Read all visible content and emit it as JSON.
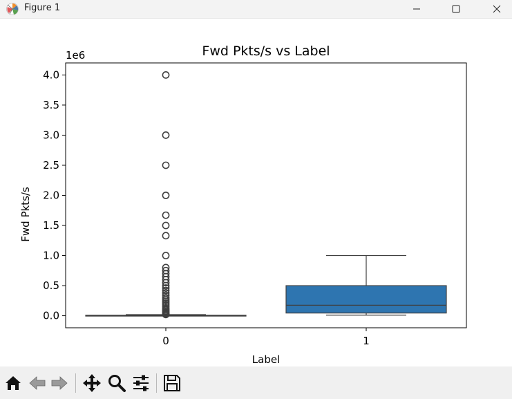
{
  "window": {
    "title": "Figure 1",
    "controls": [
      "minimize",
      "maximize",
      "close"
    ]
  },
  "toolbar": {
    "buttons": [
      {
        "name": "home",
        "icon": "home-icon"
      },
      {
        "name": "back",
        "icon": "arrow-left-icon"
      },
      {
        "name": "forward",
        "icon": "arrow-right-icon"
      },
      {
        "name": "pan",
        "icon": "move-icon"
      },
      {
        "name": "zoom",
        "icon": "magnifier-icon"
      },
      {
        "name": "configure",
        "icon": "sliders-icon"
      },
      {
        "name": "save",
        "icon": "floppy-icon"
      }
    ]
  },
  "chart_data": {
    "type": "boxplot",
    "title": "Fwd Pkts/s vs Label",
    "xlabel": "Label",
    "ylabel": "Fwd Pkts/s",
    "y_offset_text": "1e6",
    "ylim": [
      -0.2,
      4.2
    ],
    "yticks": [
      0.0,
      0.5,
      1.0,
      1.5,
      2.0,
      2.5,
      3.0,
      3.5,
      4.0
    ],
    "ytick_labels": [
      "0.0",
      "0.5",
      "1.0",
      "1.5",
      "2.0",
      "2.5",
      "3.0",
      "3.5",
      "4.0"
    ],
    "categories": [
      "0",
      "1"
    ],
    "box_color": "#2e75b0",
    "boxes": [
      {
        "category": "0",
        "min": 0.0,
        "q1": 0.0,
        "median": 0.003,
        "q3": 0.008,
        "max": 0.018,
        "outliers": [
          4.0,
          3.0,
          2.5,
          2.0,
          1.67,
          1.5,
          1.33,
          1.0,
          0.8,
          0.75,
          0.7,
          0.65,
          0.6,
          0.55,
          0.5,
          0.46,
          0.42,
          0.38,
          0.34,
          0.3,
          0.27,
          0.24,
          0.21,
          0.18,
          0.15,
          0.12,
          0.1,
          0.08,
          0.06,
          0.04,
          0.03,
          0.02
        ]
      },
      {
        "category": "1",
        "min": 0.01,
        "q1": 0.045,
        "median": 0.175,
        "q3": 0.5,
        "max": 1.0,
        "outliers": []
      }
    ]
  }
}
